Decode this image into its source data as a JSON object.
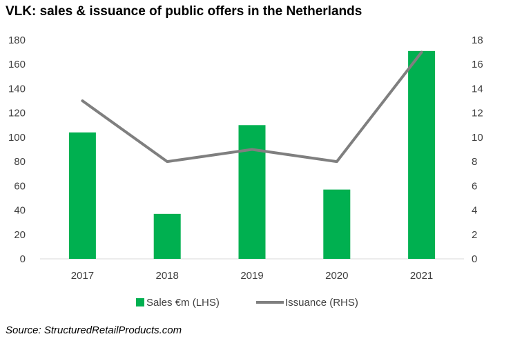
{
  "title": "VLK: sales & issuance of public offers in the Netherlands",
  "source": "Source: StructuredRetailProducts.com",
  "colors": {
    "bar": "#00b050",
    "line": "#7f7f7f",
    "axis": "#d9d9d9"
  },
  "chart_data": {
    "type": "bar",
    "categories": [
      "2017",
      "2018",
      "2019",
      "2020",
      "2021"
    ],
    "series": [
      {
        "name": "Sales €m (LHS)",
        "type": "bar",
        "axis": "left",
        "values": [
          104,
          37,
          110,
          57,
          171
        ]
      },
      {
        "name": "Issuance (RHS)",
        "type": "line",
        "axis": "right",
        "values": [
          13,
          8,
          9,
          8,
          17
        ]
      }
    ],
    "ylim_left": [
      0,
      180
    ],
    "ylim_right": [
      0,
      18
    ],
    "yticks_left": [
      "0",
      "20",
      "40",
      "60",
      "80",
      "100",
      "120",
      "140",
      "160",
      "180"
    ],
    "yticks_right": [
      "0",
      "2",
      "4",
      "6",
      "8",
      "10",
      "12",
      "14",
      "16",
      "18"
    ],
    "grid": false,
    "legend_position": "bottom"
  }
}
